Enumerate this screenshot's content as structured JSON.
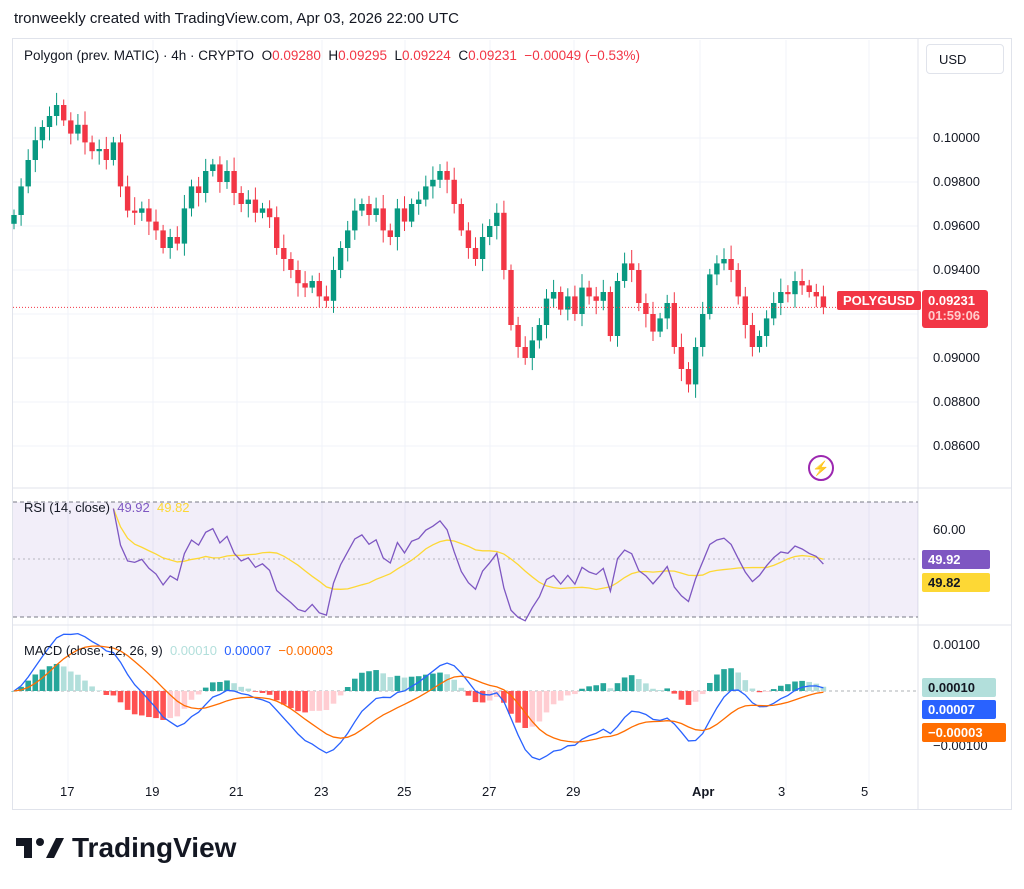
{
  "caption": "tronweekly created with TradingView.com, Apr 03, 2026 22:00 UTC",
  "legend": {
    "symbol": "Polygon (prev. MATIC) · 4h · CRYPTO",
    "o_label": "O",
    "o": "0.09280",
    "h_label": "H",
    "h": "0.09295",
    "l_label": "L",
    "l": "0.09224",
    "c_label": "C",
    "c": "0.09231",
    "change": "−0.00049 (−0.53%)"
  },
  "currency": "USD",
  "price_tag": {
    "symbol": "POLYGUSD",
    "price": "0.09231",
    "countdown": "01:59:06"
  },
  "colors": {
    "up": "#089981",
    "down": "#f23645",
    "rsi": "#7e57c2",
    "rsi_ma": "#fdd835",
    "macd": "#2962ff",
    "signal": "#ff6d00"
  },
  "rsi": {
    "label": "RSI (14, close)",
    "value": "49.92",
    "ma": "49.82",
    "tick": "60.00"
  },
  "macd": {
    "label": "MACD (close, 12, 26, 9)",
    "hist": "0.00010",
    "macd": "0.00007",
    "signal": "−0.00003",
    "tick_top": "0.00100",
    "tick_bottom": "−0.00100"
  },
  "logo": "TradingView",
  "chart_data": {
    "type": "candlestick",
    "interval": "4h",
    "price_ticks": [
      "0.10000",
      "0.09800",
      "0.09600",
      "0.09400",
      "0.09000",
      "0.08800",
      "0.08600"
    ],
    "ylim": [
      0.0845,
      0.1035
    ],
    "x_ticks": [
      "17",
      "19",
      "21",
      "23",
      "25",
      "27",
      "29",
      "Apr",
      "3",
      "5"
    ],
    "close": [
      0.0965,
      0.0978,
      0.099,
      0.0999,
      0.1005,
      0.101,
      0.1015,
      0.1008,
      0.1002,
      0.1006,
      0.0998,
      0.0994,
      0.0995,
      0.099,
      0.0998,
      0.0978,
      0.0967,
      0.0966,
      0.0968,
      0.0962,
      0.0958,
      0.095,
      0.0955,
      0.0952,
      0.0968,
      0.0978,
      0.0975,
      0.0985,
      0.0988,
      0.098,
      0.0985,
      0.0975,
      0.097,
      0.0972,
      0.0966,
      0.0968,
      0.0964,
      0.095,
      0.0945,
      0.094,
      0.0934,
      0.0932,
      0.0935,
      0.0928,
      0.0926,
      0.094,
      0.095,
      0.0958,
      0.0967,
      0.097,
      0.0965,
      0.0968,
      0.0958,
      0.0955,
      0.0968,
      0.0962,
      0.097,
      0.0972,
      0.0978,
      0.0981,
      0.0985,
      0.0981,
      0.097,
      0.0958,
      0.095,
      0.0945,
      0.0955,
      0.096,
      0.0966,
      0.094,
      0.0915,
      0.0905,
      0.09,
      0.0908,
      0.0915,
      0.0927,
      0.093,
      0.0922,
      0.0928,
      0.092,
      0.0932,
      0.0928,
      0.0926,
      0.093,
      0.091,
      0.0935,
      0.0943,
      0.094,
      0.0925,
      0.092,
      0.0912,
      0.0918,
      0.0925,
      0.0905,
      0.0895,
      0.0888,
      0.0905,
      0.092,
      0.0938,
      0.0943,
      0.0945,
      0.094,
      0.0928,
      0.0915,
      0.0905,
      0.091,
      0.0918,
      0.0925,
      0.093,
      0.0929,
      0.0935,
      0.0933,
      0.093,
      0.0928,
      0.0923
    ]
  }
}
